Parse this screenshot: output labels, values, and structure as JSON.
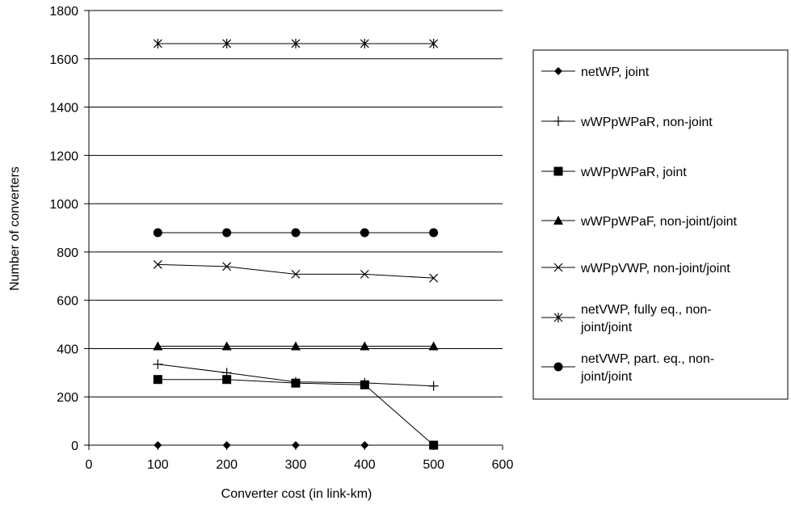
{
  "chart_data": {
    "type": "line",
    "title": "",
    "xlabel": "Converter cost (in link-km)",
    "ylabel": "Number of converters",
    "xlim": [
      0,
      600
    ],
    "ylim": [
      0,
      1800
    ],
    "x_ticks": [
      0,
      100,
      200,
      300,
      400,
      500,
      600
    ],
    "y_ticks": [
      0,
      200,
      400,
      600,
      800,
      1000,
      1200,
      1400,
      1600,
      1800
    ],
    "grid": "horizontal",
    "legend_position": "right",
    "x": [
      100,
      200,
      300,
      400,
      500
    ],
    "series": [
      {
        "name": "netWP, joint",
        "name_lines": [
          "netWP, joint"
        ],
        "marker": "diamond",
        "values": [
          0,
          0,
          0,
          0,
          0
        ]
      },
      {
        "name": "wWPpWPaR, non-joint",
        "name_lines": [
          "wWPpWPaR, non-joint"
        ],
        "marker": "plus",
        "values": [
          335,
          300,
          262,
          258,
          245
        ]
      },
      {
        "name": "wWPpWPaR, joint",
        "name_lines": [
          "wWPpWPaR, joint"
        ],
        "marker": "square",
        "values": [
          272,
          272,
          257,
          250,
          0
        ]
      },
      {
        "name": "wWPpWPaF, non-joint/joint",
        "name_lines": [
          "wWPpWPaF, non-joint/joint"
        ],
        "marker": "triangle",
        "values": [
          410,
          410,
          410,
          410,
          410
        ]
      },
      {
        "name": "wWPpVWP, non-joint/joint",
        "name_lines": [
          "wWPpVWP, non-joint/joint"
        ],
        "marker": "x",
        "values": [
          748,
          740,
          708,
          708,
          692
        ]
      },
      {
        "name": "netVWP, fully eq., non-joint/joint",
        "name_lines": [
          "netVWP, fully eq., non-",
          "joint/joint"
        ],
        "marker": "asterisk",
        "values": [
          1663,
          1663,
          1663,
          1663,
          1663
        ]
      },
      {
        "name": "netVWP, part. eq., non-joint/joint",
        "name_lines": [
          "netVWP, part. eq., non-",
          "joint/joint"
        ],
        "marker": "circle",
        "values": [
          880,
          880,
          880,
          880,
          880
        ]
      }
    ]
  }
}
